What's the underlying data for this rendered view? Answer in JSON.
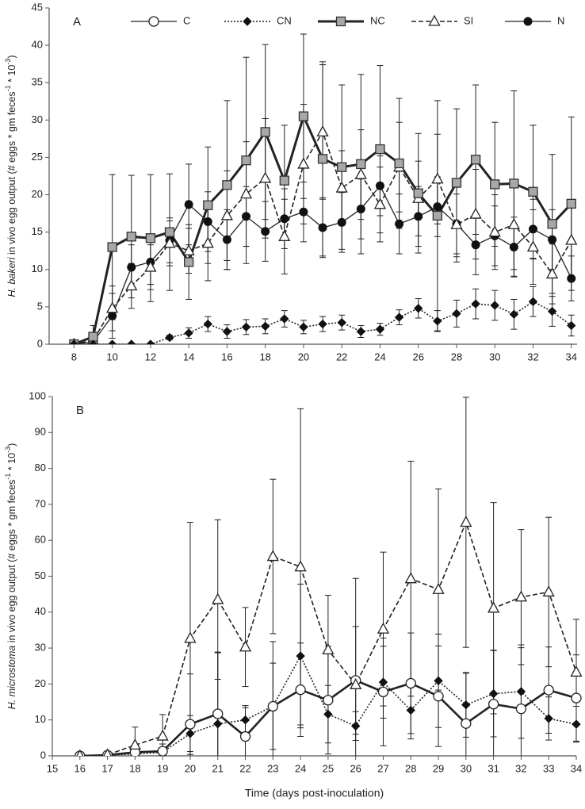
{
  "chart_data": [
    {
      "type": "line",
      "panel": "A",
      "ylabel": [
        {
          "text": "H. bakeri",
          "italic": true
        },
        {
          "text": " in vivo egg output (# eggs * gm feces"
        },
        {
          "text": "-1",
          "sup": true
        },
        {
          "text": " * 10"
        },
        {
          "text": "-3",
          "sup": true
        },
        {
          "text": ")"
        }
      ],
      "xlim": [
        6.7,
        34.3
      ],
      "xticks": [
        8,
        10,
        12,
        14,
        16,
        18,
        20,
        22,
        24,
        26,
        28,
        30,
        32,
        34
      ],
      "ylim": [
        0,
        45
      ],
      "yticks": [
        0,
        5,
        10,
        15,
        20,
        25,
        30,
        35,
        40,
        45
      ],
      "legend": [
        {
          "name": "C",
          "marker": "circle-open",
          "dash": "solid",
          "width": 1.3
        },
        {
          "name": "CN",
          "marker": "diamond",
          "dash": "dotted",
          "width": 1.6
        },
        {
          "name": "NC",
          "marker": "square-gray",
          "dash": "solid",
          "width": 3
        },
        {
          "name": "SI",
          "marker": "triangle-open",
          "dash": "dashed",
          "width": 1.6
        },
        {
          "name": "N",
          "marker": "circle-filled",
          "dash": "solid",
          "width": 1.3
        }
      ],
      "x": [
        8,
        9,
        10,
        11,
        12,
        13,
        14,
        15,
        16,
        17,
        18,
        19,
        20,
        21,
        22,
        23,
        24,
        25,
        26,
        27,
        28,
        29,
        30,
        31,
        32,
        33,
        34
      ],
      "series": [
        {
          "marker": "circle-filled",
          "dash": "solid",
          "width": 1.3,
          "color": "#222",
          "values": [
            0,
            0.3,
            3.8,
            10.3,
            11,
            13.9,
            18.7,
            16.4,
            14,
            17.1,
            15.1,
            16.8,
            17.7,
            15.6,
            16.3,
            18.1,
            21.2,
            16.1,
            17.1,
            18.4,
            16.1,
            13.3,
            14.5,
            13,
            15.4,
            14,
            8.8
          ],
          "errors": [
            0,
            0.5,
            3,
            3,
            3,
            3,
            5.4,
            4,
            4,
            4,
            4,
            4,
            4,
            4,
            4,
            4,
            4,
            4,
            4,
            4,
            4,
            4,
            4,
            4,
            4,
            4,
            3
          ]
        },
        {
          "marker": "triangle-open",
          "dash": "dashed",
          "width": 1.6,
          "color": "#222",
          "values": [
            0,
            0.5,
            4.8,
            7.8,
            10.3,
            13.5,
            12.5,
            13.5,
            17.2,
            20.1,
            22.2,
            14.4,
            24.1,
            28.4,
            20.9,
            22.7,
            18.7,
            23.7,
            19.5,
            22.1,
            16,
            17.4,
            15,
            16,
            13,
            9.4,
            13.9
          ],
          "errors": [
            0,
            1,
            3,
            3,
            3,
            3,
            3,
            5,
            6,
            7,
            8,
            5,
            8,
            9,
            5,
            6,
            5,
            6,
            5,
            6,
            5,
            6,
            5,
            6,
            5,
            4,
            5
          ]
        },
        {
          "marker": "square-gray",
          "dash": "solid",
          "width": 3,
          "color": "#222",
          "values": [
            0,
            1,
            13,
            14.4,
            14.2,
            15,
            11,
            18.6,
            21.3,
            24.6,
            28.4,
            21.9,
            30.5,
            24.8,
            23.7,
            24.1,
            26.1,
            24.2,
            20.2,
            17.2,
            21.6,
            24.7,
            21.4,
            21.5,
            20.4,
            16.1,
            18.8
          ],
          "errors": [
            0,
            1.5,
            9.7,
            8.2,
            8.5,
            7.8,
            5,
            7.8,
            11.3,
            13.8,
            11.7,
            7.4,
            11,
            13,
            11,
            12,
            11.2,
            8.7,
            8,
            15.4,
            9.9,
            10,
            8.3,
            12.4,
            8.9,
            9.3,
            11.6
          ]
        },
        {
          "marker": "diamond",
          "dash": "dotted",
          "width": 1.6,
          "color": "#222",
          "values": [
            0,
            0,
            0,
            0,
            0,
            0.9,
            1.5,
            2.7,
            1.7,
            2.3,
            2.4,
            3.4,
            2.3,
            2.7,
            2.9,
            1.7,
            2,
            3.6,
            4.8,
            3.1,
            4.1,
            5.4,
            5.2,
            4,
            5.7,
            4.4,
            2.5
          ],
          "errors": [
            0,
            0,
            0,
            0,
            0,
            0.3,
            0.7,
            1,
            0.9,
            1,
            1,
            1.1,
            0.9,
            1,
            1,
            0.8,
            0.8,
            1,
            1.3,
            1.4,
            1.8,
            2,
            2,
            2,
            2,
            2,
            1.4
          ]
        }
      ]
    },
    {
      "type": "line",
      "panel": "B",
      "ylabel": [
        {
          "text": "H. microstoma",
          "italic": true
        },
        {
          "text": " in vivo egg output (# eggs * gm feces"
        },
        {
          "text": "-1",
          "sup": true
        },
        {
          "text": " * 10"
        },
        {
          "text": "-3",
          "sup": true
        },
        {
          "text": ")"
        }
      ],
      "xlabel": "Time (days post-inoculation)",
      "xlim": [
        15,
        34
      ],
      "xticks": [
        15,
        16,
        17,
        18,
        19,
        20,
        21,
        22,
        23,
        24,
        25,
        26,
        27,
        28,
        29,
        30,
        31,
        32,
        33,
        34
      ],
      "ylim": [
        0,
        100
      ],
      "yticks": [
        0,
        10,
        20,
        30,
        40,
        50,
        60,
        70,
        80,
        90,
        100
      ],
      "x": [
        16,
        17,
        18,
        19,
        20,
        21,
        22,
        23,
        24,
        25,
        26,
        27,
        28,
        29,
        30,
        31,
        32,
        33,
        34
      ],
      "series": [
        {
          "marker": "diamond",
          "dash": "dotted",
          "width": 1.6,
          "color": "#222",
          "values": [
            0,
            0.2,
            0.5,
            1,
            6.2,
            8.9,
            10,
            13.8,
            27.8,
            11.6,
            8.3,
            20.5,
            12.7,
            20.9,
            14.2,
            17.3,
            17.9,
            10.4,
            8.8
          ],
          "errors": [
            0,
            0.3,
            1,
            1,
            5,
            20,
            4,
            12,
            20,
            8,
            4,
            10,
            8,
            13,
            9,
            12,
            13,
            6,
            5
          ]
        },
        {
          "marker": "circle-open",
          "dash": "solid",
          "width": 2.6,
          "color": "#222",
          "values": [
            0,
            0.2,
            1,
            1.3,
            8.8,
            11.7,
            5.4,
            13.8,
            18.4,
            15.5,
            21,
            17.8,
            20.2,
            16.6,
            9,
            14.4,
            13.1,
            18.3,
            16.1
          ],
          "errors": [
            0,
            0.3,
            2,
            2,
            14,
            17,
            8,
            18,
            13,
            15,
            15,
            15,
            14,
            14,
            14,
            15,
            17,
            12,
            12
          ]
        },
        {
          "marker": "triangle-open",
          "dash": "dashed",
          "width": 1.6,
          "color": "#222",
          "values": [
            0,
            0.3,
            3,
            5.5,
            32.7,
            43.5,
            30.3,
            55.5,
            52.6,
            29.5,
            19.8,
            35.3,
            49.3,
            46.3,
            65,
            41.1,
            44.2,
            45.6,
            23.3
          ],
          "errors": [
            0,
            0.5,
            5,
            6,
            32.3,
            22.2,
            11,
            21.5,
            44,
            15.2,
            29.6,
            21.4,
            32.7,
            28,
            34.8,
            29.4,
            18.8,
            20.8,
            14.7
          ]
        }
      ]
    }
  ]
}
